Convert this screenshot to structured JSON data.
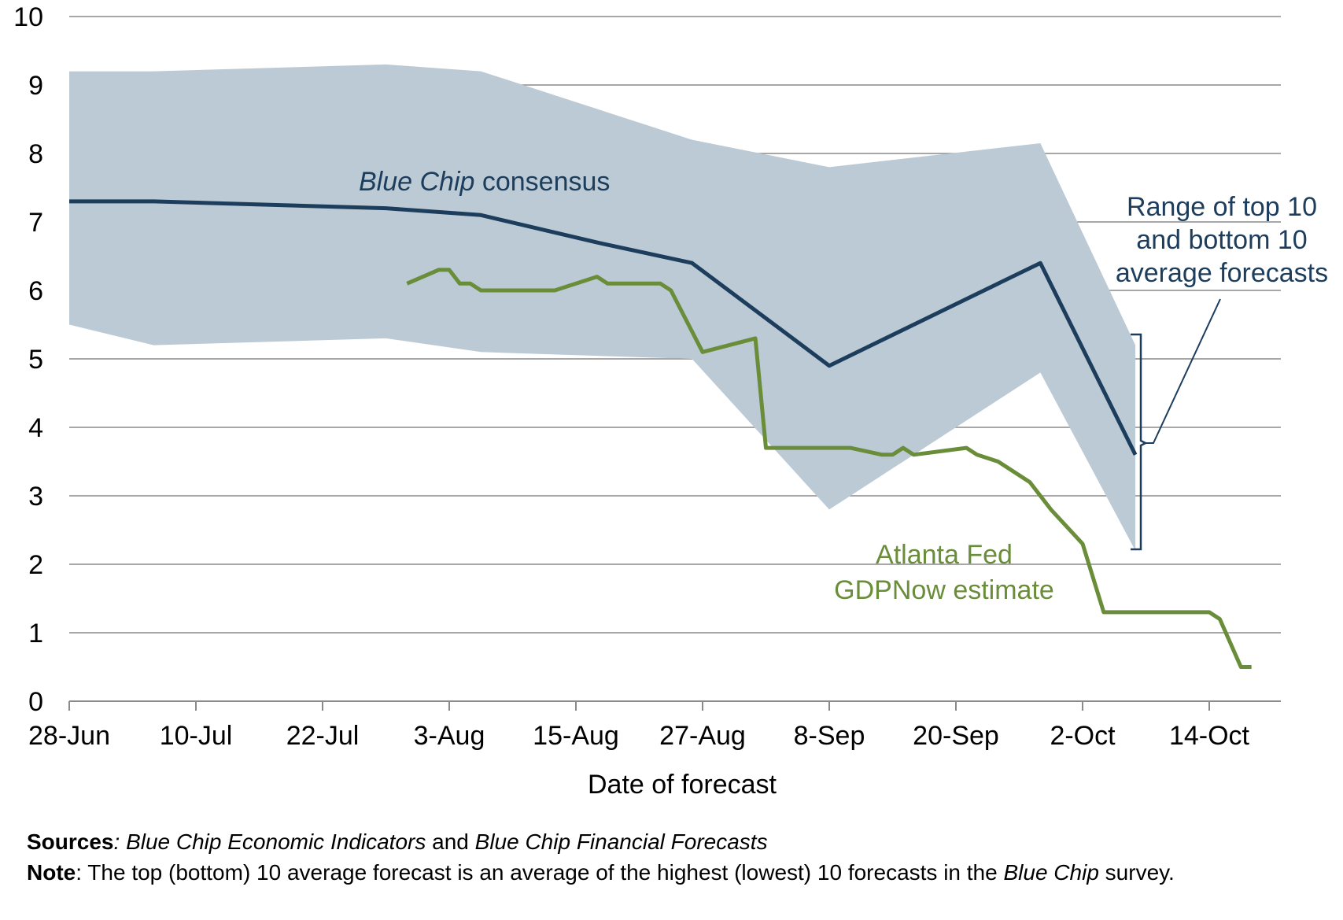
{
  "chart_data": {
    "type": "line",
    "xlabel": "Date of forecast",
    "ylabel": "",
    "ylim": [
      0,
      10
    ],
    "yticks": [
      "0",
      "1",
      "2",
      "3",
      "4",
      "5",
      "6",
      "7",
      "8",
      "9",
      "10"
    ],
    "xticks": [
      "28-Jun",
      "10-Jul",
      "22-Jul",
      "3-Aug",
      "15-Aug",
      "27-Aug",
      "8-Sep",
      "20-Sep",
      "2-Oct",
      "14-Oct"
    ],
    "xrange_days": [
      0,
      115
    ],
    "grid": "horizontal",
    "band": {
      "name": "Range of top 10 and bottom 10 average forecasts",
      "color": "#bccad5",
      "upper": [
        [
          0,
          9.2
        ],
        [
          8,
          9.2
        ],
        [
          30,
          9.3
        ],
        [
          39,
          9.2
        ],
        [
          59,
          8.2
        ],
        [
          72,
          7.8
        ],
        [
          92,
          8.15
        ],
        [
          101,
          5.2
        ]
      ],
      "lower": [
        [
          0,
          5.5
        ],
        [
          8,
          5.2
        ],
        [
          30,
          5.3
        ],
        [
          39,
          5.1
        ],
        [
          59,
          5.0
        ],
        [
          72,
          2.8
        ],
        [
          92,
          4.8
        ],
        [
          101,
          2.2
        ]
      ]
    },
    "series": [
      {
        "name": "Blue Chip consensus",
        "color": "#1d3d5c",
        "points": [
          [
            0,
            7.3
          ],
          [
            8,
            7.3
          ],
          [
            30,
            7.2
          ],
          [
            39,
            7.1
          ],
          [
            50,
            6.7
          ],
          [
            59,
            6.4
          ],
          [
            72,
            4.9
          ],
          [
            92,
            6.4
          ],
          [
            101,
            3.6
          ]
        ]
      },
      {
        "name": "Atlanta Fed GDPNow estimate",
        "color": "#6a8d3a",
        "points": [
          [
            32,
            6.1
          ],
          [
            35,
            6.3
          ],
          [
            36,
            6.3
          ],
          [
            37,
            6.1
          ],
          [
            38,
            6.1
          ],
          [
            39,
            6.0
          ],
          [
            46,
            6.0
          ],
          [
            50,
            6.2
          ],
          [
            51,
            6.1
          ],
          [
            56,
            6.1
          ],
          [
            57,
            6.0
          ],
          [
            60,
            5.1
          ],
          [
            65,
            5.3
          ],
          [
            66,
            3.7
          ],
          [
            74,
            3.7
          ],
          [
            77,
            3.6
          ],
          [
            78,
            3.6
          ],
          [
            79,
            3.7
          ],
          [
            80,
            3.6
          ],
          [
            85,
            3.7
          ],
          [
            86,
            3.6
          ],
          [
            88,
            3.5
          ],
          [
            91,
            3.2
          ],
          [
            93,
            2.8
          ],
          [
            96,
            2.3
          ],
          [
            98,
            1.3
          ],
          [
            108,
            1.3
          ],
          [
            109,
            1.2
          ],
          [
            111,
            0.5
          ],
          [
            112,
            0.5
          ]
        ]
      }
    ],
    "annotations": {
      "blue_chip_italic": "Blue Chip",
      "blue_chip_rest": " consensus",
      "gdpnow_line1": "Atlanta Fed",
      "gdpnow_line2": "GDPNow estimate",
      "range_line1": "Range of top 10",
      "range_line2": "and bottom 10",
      "range_line3": "average forecasts"
    }
  },
  "footer": {
    "sources_label": "Sources",
    "sources_sep": ": ",
    "sources_text1": "Blue Chip Economic Indicators",
    "sources_and": " and ",
    "sources_text2": "Blue Chip Financial Forecasts",
    "note_label": "Note",
    "note_text": ": The top (bottom) 10 average forecast is an average of the highest (lowest) 10 forecasts in the ",
    "note_italic": "Blue Chip",
    "note_tail": " survey."
  }
}
